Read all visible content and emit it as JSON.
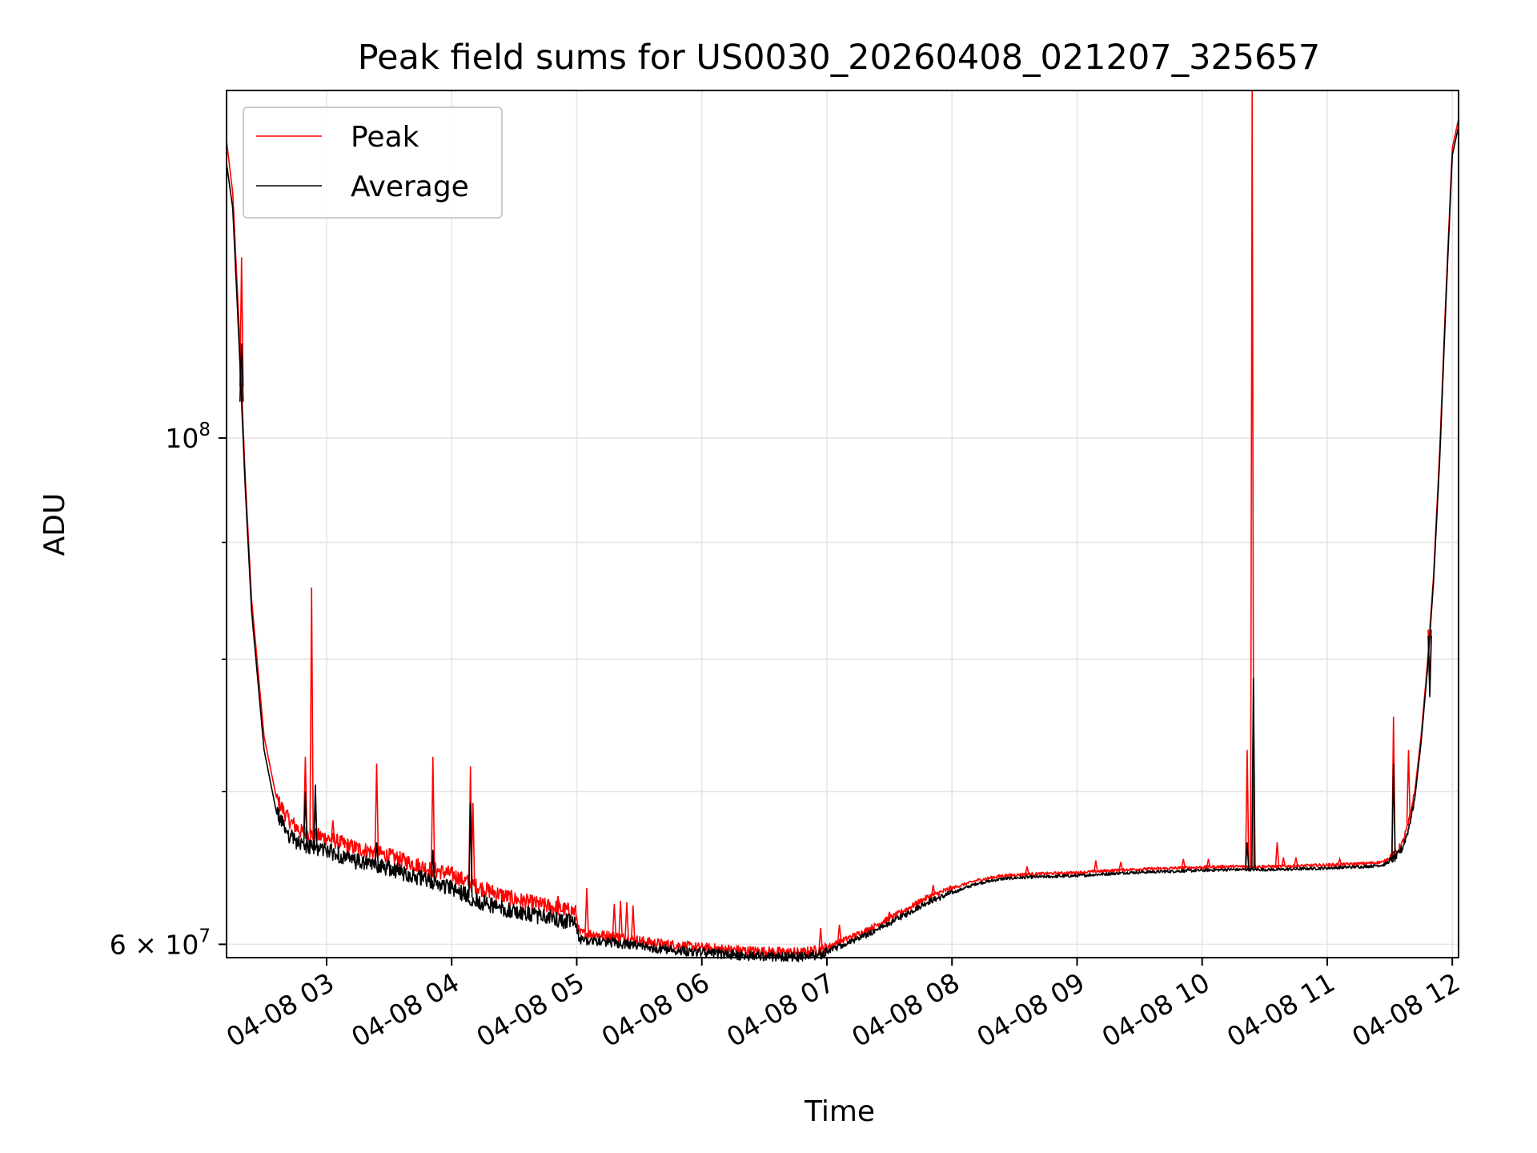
{
  "chart_data": {
    "type": "line",
    "title": "Peak field sums for US0030_20260408_021207_325657",
    "xlabel": "Time",
    "ylabel": "ADU",
    "yscale": "log",
    "ylim": [
      59200000,
      142000000
    ],
    "xlim_hours": [
      2.2,
      12.05
    ],
    "grid": true,
    "legend_position": "upper-left",
    "x_ticks": [
      {
        "value": 3,
        "label": "04-08 03"
      },
      {
        "value": 4,
        "label": "04-08 04"
      },
      {
        "value": 5,
        "label": "04-08 05"
      },
      {
        "value": 6,
        "label": "04-08 06"
      },
      {
        "value": 7,
        "label": "04-08 07"
      },
      {
        "value": 8,
        "label": "04-08 08"
      },
      {
        "value": 9,
        "label": "04-08 09"
      },
      {
        "value": 10,
        "label": "04-08 10"
      },
      {
        "value": 11,
        "label": "04-08 11"
      },
      {
        "value": 12,
        "label": "04-08 12"
      }
    ],
    "y_major_ticks": [
      {
        "value": 100000000,
        "base": "10",
        "exp": "8"
      },
      {
        "value": 60000000,
        "base": "6 × 10",
        "exp": "7"
      }
    ],
    "y_minor_ticks": [
      70000000,
      80000000,
      90000000
    ],
    "series": [
      {
        "name": "Peak",
        "color": "#ff0000",
        "baseline_hours": [
          2.2,
          2.25,
          2.3,
          2.35,
          2.4,
          2.5,
          2.6,
          2.7,
          2.8,
          3.0,
          3.2,
          3.5,
          3.8,
          4.0,
          4.2,
          4.5,
          4.8,
          4.99,
          5.02,
          5.3,
          5.6,
          6.0,
          6.4,
          6.8,
          6.95,
          7.05,
          7.3,
          7.6,
          7.8,
          8.0,
          8.2,
          8.4,
          8.6,
          9.0,
          9.4,
          9.8,
          10.2,
          10.6,
          11.0,
          11.3,
          11.45,
          11.55,
          11.6,
          11.65,
          11.7,
          11.75,
          11.8,
          11.85,
          11.9,
          11.95,
          12.0,
          12.05
        ],
        "baseline_values": [
          135000000,
          128000000,
          112000000,
          96000000,
          85000000,
          74000000,
          69500000,
          68000000,
          67200000,
          66800000,
          66200000,
          65600000,
          64800000,
          64400000,
          63600000,
          62800000,
          62300000,
          62000000,
          60700000,
          60500000,
          60100000,
          59800000,
          59600000,
          59500000,
          59700000,
          60000000,
          60800000,
          62000000,
          62900000,
          63500000,
          64000000,
          64300000,
          64400000,
          64500000,
          64700000,
          64800000,
          64900000,
          64900000,
          65000000,
          65100000,
          65200000,
          65800000,
          66400000,
          67800000,
          70000000,
          74000000,
          79500000,
          87000000,
          99000000,
          116000000,
          134000000,
          138000000
        ],
        "spikes": [
          {
            "x": 2.32,
            "y": 120000000
          },
          {
            "x": 2.83,
            "y": 72500000
          },
          {
            "x": 2.88,
            "y": 86000000
          },
          {
            "x": 2.91,
            "y": 69000000
          },
          {
            "x": 3.05,
            "y": 68000000
          },
          {
            "x": 3.4,
            "y": 72000000
          },
          {
            "x": 3.85,
            "y": 72500000
          },
          {
            "x": 4.15,
            "y": 71800000
          },
          {
            "x": 4.17,
            "y": 69200000
          },
          {
            "x": 4.85,
            "y": 63000000
          },
          {
            "x": 5.08,
            "y": 63500000
          },
          {
            "x": 5.3,
            "y": 62500000
          },
          {
            "x": 5.35,
            "y": 62700000
          },
          {
            "x": 5.4,
            "y": 62600000
          },
          {
            "x": 5.45,
            "y": 62400000
          },
          {
            "x": 6.95,
            "y": 61000000
          },
          {
            "x": 7.1,
            "y": 61200000
          },
          {
            "x": 7.5,
            "y": 62000000
          },
          {
            "x": 7.85,
            "y": 63700000
          },
          {
            "x": 8.6,
            "y": 64900000
          },
          {
            "x": 9.15,
            "y": 65300000
          },
          {
            "x": 9.35,
            "y": 65200000
          },
          {
            "x": 9.85,
            "y": 65400000
          },
          {
            "x": 10.05,
            "y": 65400000
          },
          {
            "x": 10.36,
            "y": 73000000
          },
          {
            "x": 10.4,
            "y": 142000000
          },
          {
            "x": 10.6,
            "y": 66500000
          },
          {
            "x": 10.65,
            "y": 65500000
          },
          {
            "x": 10.75,
            "y": 65500000
          },
          {
            "x": 11.1,
            "y": 65400000
          },
          {
            "x": 11.53,
            "y": 75500000
          },
          {
            "x": 11.65,
            "y": 73000000
          },
          {
            "x": 11.82,
            "y": 78000000
          }
        ]
      },
      {
        "name": "Average",
        "color": "#000000",
        "baseline_hours": [
          2.2,
          2.25,
          2.3,
          2.35,
          2.4,
          2.5,
          2.6,
          2.7,
          2.8,
          3.0,
          3.2,
          3.5,
          3.8,
          4.0,
          4.2,
          4.5,
          4.8,
          4.99,
          5.02,
          5.3,
          5.6,
          6.0,
          6.4,
          6.8,
          6.95,
          7.05,
          7.3,
          7.6,
          7.8,
          8.0,
          8.2,
          8.4,
          8.6,
          9.0,
          9.4,
          9.8,
          10.2,
          10.6,
          11.0,
          11.3,
          11.45,
          11.55,
          11.6,
          11.65,
          11.7,
          11.75,
          11.8,
          11.85,
          11.9,
          11.95,
          12.0,
          12.05
        ],
        "baseline_values": [
          132000000,
          126000000,
          110000000,
          95000000,
          84000000,
          73000000,
          68500000,
          67000000,
          66300000,
          66000000,
          65300000,
          64800000,
          64000000,
          63500000,
          62700000,
          62000000,
          61600000,
          61300000,
          60300000,
          60100000,
          59800000,
          59500000,
          59300000,
          59250000,
          59400000,
          59700000,
          60500000,
          61700000,
          62600000,
          63200000,
          63800000,
          64100000,
          64200000,
          64300000,
          64500000,
          64600000,
          64700000,
          64700000,
          64800000,
          64900000,
          65000000,
          65500000,
          66100000,
          67400000,
          69500000,
          73500000,
          79000000,
          86500000,
          98000000,
          115000000,
          133000000,
          137000000
        ],
        "spikes": [
          {
            "x": 2.32,
            "y": 110000000
          },
          {
            "x": 2.83,
            "y": 70000000
          },
          {
            "x": 2.91,
            "y": 70500000
          },
          {
            "x": 3.4,
            "y": 66500000
          },
          {
            "x": 3.85,
            "y": 66000000
          },
          {
            "x": 4.15,
            "y": 69200000
          },
          {
            "x": 10.36,
            "y": 66500000
          },
          {
            "x": 10.41,
            "y": 78500000
          },
          {
            "x": 11.53,
            "y": 72000000
          },
          {
            "x": 11.82,
            "y": 77000000
          }
        ]
      }
    ]
  }
}
